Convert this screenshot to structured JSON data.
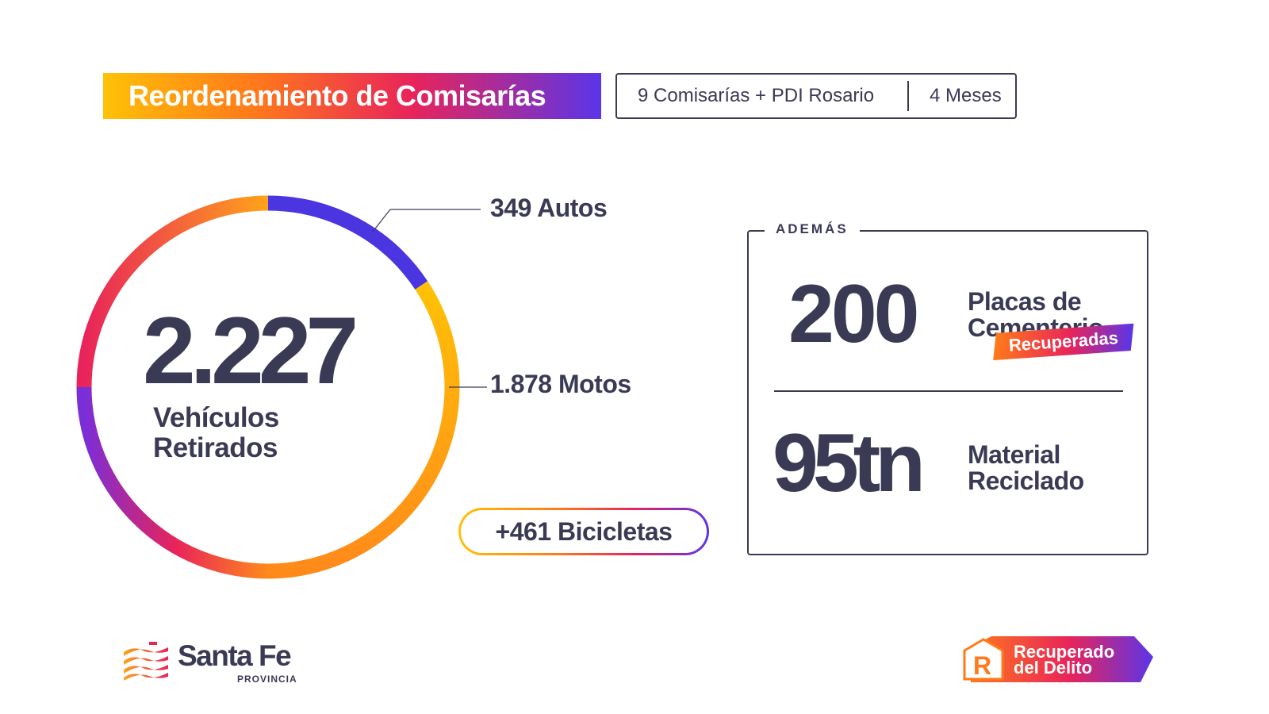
{
  "header": {
    "title": "Reordenamiento de Comisarías",
    "info_scope": "9 Comisarías + PDI Rosario",
    "info_duration": "4 Meses"
  },
  "main": {
    "total_value": "2.227",
    "total_label_line1": "Vehículos",
    "total_label_line2": "Retirados",
    "autos_label": "349 Autos",
    "motos_label": "1.878 Motos",
    "bicicletas_label": "+461 Bicicletas"
  },
  "ademas": {
    "legend": "ADEMÁS",
    "placas_value": "200",
    "placas_line1": "Placas de",
    "placas_line2": "Cementerio",
    "placas_badge": "Recuperadas",
    "material_value": "95tn",
    "material_line1": "Material",
    "material_line2": "Reciclado"
  },
  "footer": {
    "brand_name": "Santa Fe",
    "brand_sub": "PROVINCIA",
    "badge_line1": "Recuperado",
    "badge_line2": "del Delito"
  },
  "chart_data": {
    "type": "pie",
    "categories": [
      "Autos",
      "Motos"
    ],
    "values": [
      349,
      1878
    ]
  },
  "colors": {
    "text_dark": "#3b3a55",
    "autos": "#4a35e0",
    "yellow": "#ffc107",
    "orange": "#ff7a1a",
    "pink": "#e8245a",
    "purple": "#6a30d8"
  }
}
